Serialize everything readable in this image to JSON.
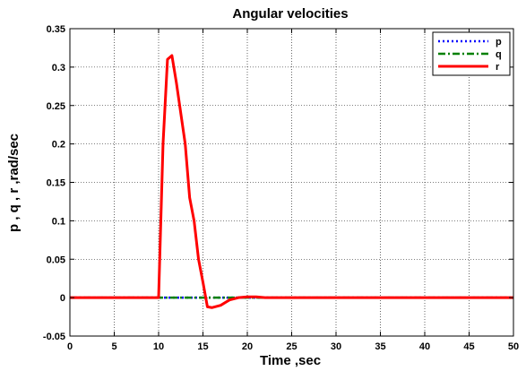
{
  "chart_data": {
    "type": "line",
    "title": "Angular velocities",
    "xlabel": "Time ,sec",
    "ylabel": "p , q , r ,rad/sec",
    "xlim": [
      0,
      50
    ],
    "ylim": [
      -0.05,
      0.35
    ],
    "xticks": [
      "0",
      "5",
      "10",
      "15",
      "20",
      "25",
      "30",
      "35",
      "40",
      "45",
      "50"
    ],
    "yticks": [
      "-0.05",
      "0",
      "0.05",
      "0.1",
      "0.15",
      "0.2",
      "0.25",
      "0.3",
      "0.35"
    ],
    "grid": true,
    "legend": "top-right",
    "series": [
      {
        "name": "p",
        "color": "#0000ff",
        "style": "dotted",
        "x": [
          0,
          50
        ],
        "y": [
          0,
          0
        ]
      },
      {
        "name": "q",
        "color": "#008000",
        "style": "dashdot",
        "x": [
          0,
          50
        ],
        "y": [
          0,
          0
        ]
      },
      {
        "name": "r",
        "color": "#ff0000",
        "style": "solid",
        "x": [
          0,
          10,
          10.5,
          11,
          11.5,
          12,
          12.5,
          13,
          13.5,
          14,
          14.5,
          15,
          15.5,
          16,
          17,
          18,
          19,
          20,
          21,
          22,
          25,
          30,
          40,
          50
        ],
        "y": [
          0,
          0,
          0.2,
          0.31,
          0.315,
          0.28,
          0.24,
          0.2,
          0.13,
          0.1,
          0.05,
          0.02,
          -0.012,
          -0.013,
          -0.01,
          -0.003,
          0,
          0.001,
          0.001,
          0,
          0,
          0,
          0,
          0
        ]
      }
    ]
  }
}
